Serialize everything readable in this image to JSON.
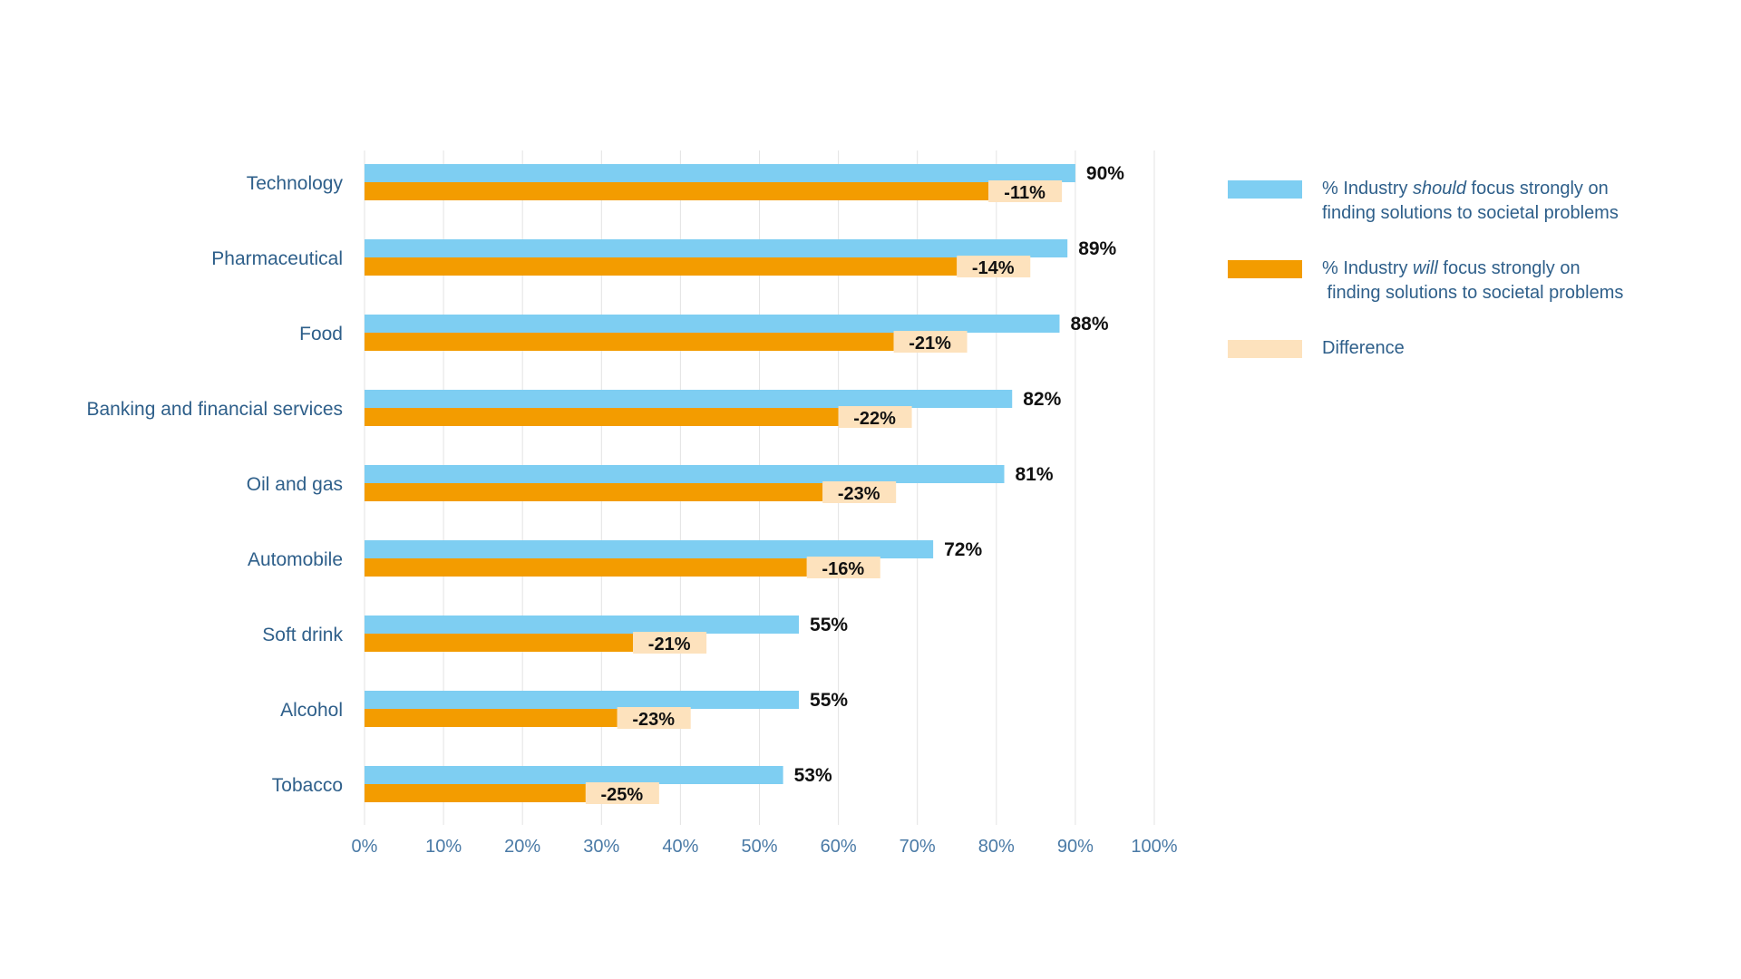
{
  "chart_data": {
    "type": "bar",
    "orientation": "horizontal",
    "categories": [
      "Technology",
      "Pharmaceutical",
      "Food",
      "Banking and financial services",
      "Oil and gas",
      "Automobile",
      "Soft drink",
      "Alcohol",
      "Tobacco"
    ],
    "series": [
      {
        "name": "% Industry should focus strongly on finding solutions to societal problems",
        "color": "#7ecef2",
        "values": [
          90,
          89,
          88,
          82,
          81,
          72,
          55,
          55,
          53
        ],
        "labels": [
          "90%",
          "89%",
          "88%",
          "82%",
          "81%",
          "72%",
          "55%",
          "55%",
          "53%"
        ]
      },
      {
        "name": "% Industry will focus strongly on finding solutions to societal problems",
        "color": "#f39c00",
        "values": [
          79,
          75,
          67,
          60,
          58,
          56,
          34,
          32,
          28
        ]
      },
      {
        "name": "Difference",
        "color": "#fde2bd",
        "values": [
          -11,
          -14,
          -21,
          -22,
          -23,
          -16,
          -21,
          -23,
          -25
        ],
        "labels": [
          "-11%",
          "-14%",
          "-21%",
          "-22%",
          "-23%",
          "-16%",
          "-21%",
          "-23%",
          "-25%"
        ]
      }
    ],
    "xlim": [
      0,
      100
    ],
    "xticks": [
      "0%",
      "10%",
      "20%",
      "30%",
      "40%",
      "50%",
      "60%",
      "70%",
      "80%",
      "90%",
      "100%"
    ],
    "grid": true,
    "legend_position": "right"
  },
  "legend": {
    "items": [
      {
        "pre": "% Industry ",
        "em": "should",
        "post": " focus strongly on",
        "line2": "finding solutions to societal problems",
        "color": "#7ecef2"
      },
      {
        "pre": "% Industry ",
        "em": "will",
        "post": " focus strongly on",
        "line2": " finding solutions to societal problems",
        "color": "#f39c00"
      },
      {
        "pre": "Difference",
        "em": "",
        "post": "",
        "line2": "",
        "color": "#fde2bd"
      }
    ]
  }
}
